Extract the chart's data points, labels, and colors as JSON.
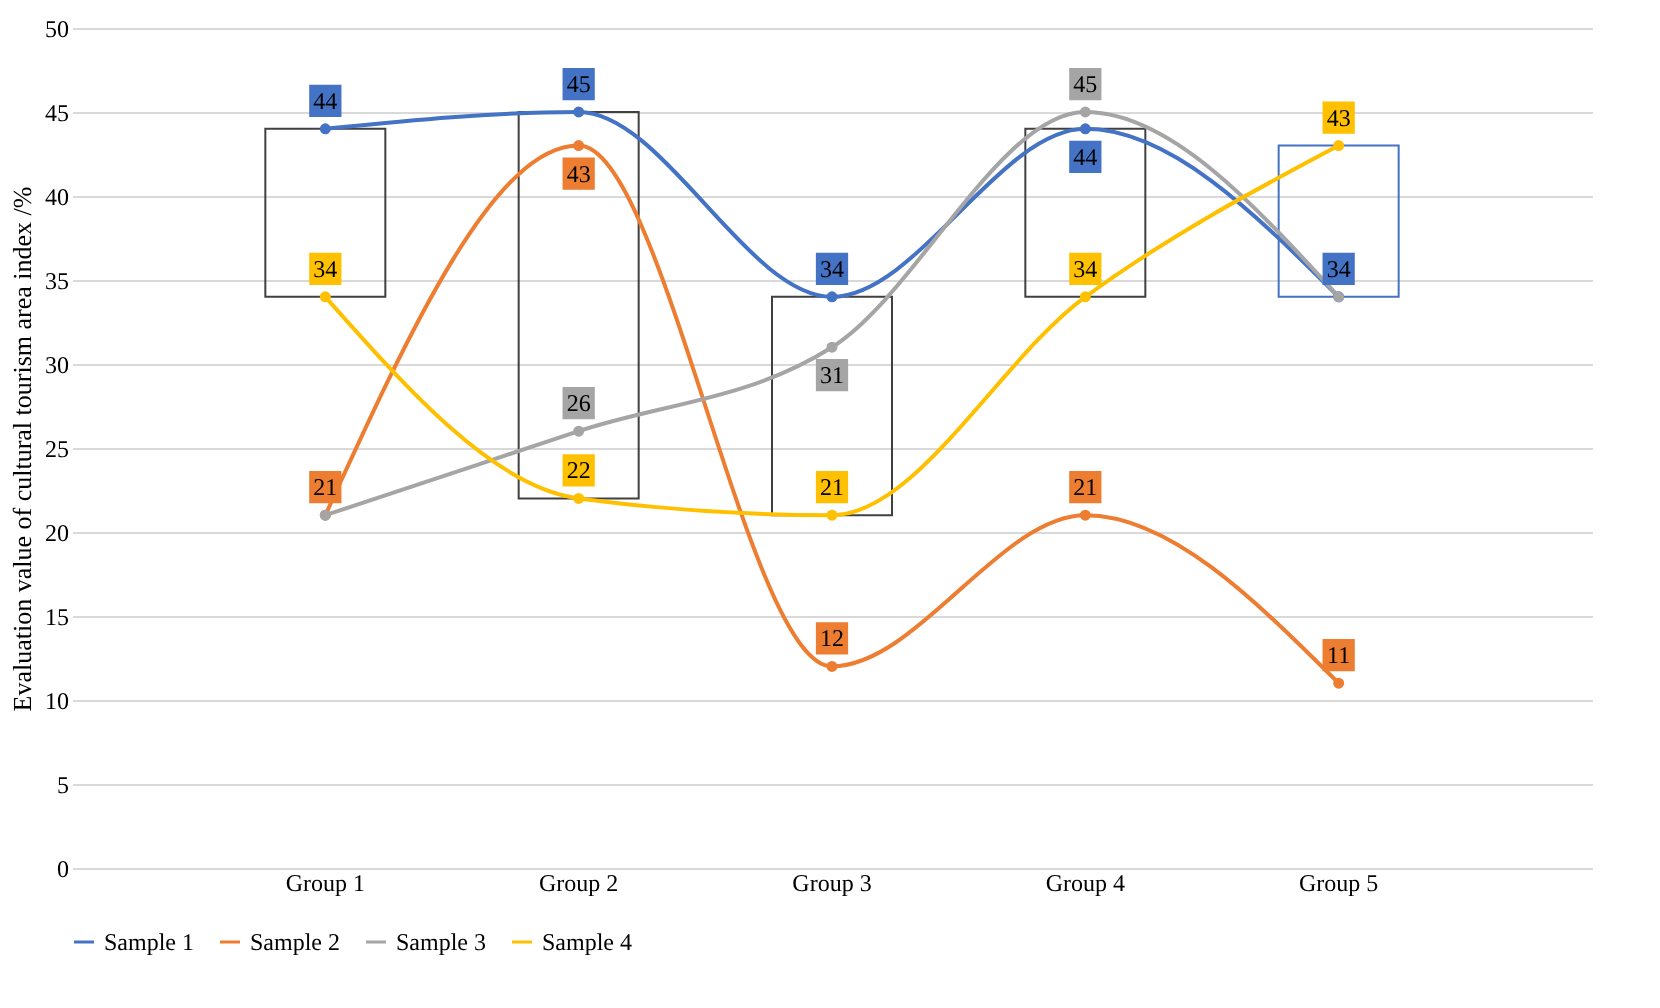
{
  "chart_data": {
    "type": "line",
    "ylabel": "Evaluation value of cultural tourism area index /%",
    "categories": [
      "Group 1",
      "Group 2",
      "Group 3",
      "Group 4",
      "Group 5"
    ],
    "series": [
      {
        "name": "Sample 1",
        "color": "#4472c4",
        "values": [
          44,
          45,
          34,
          44,
          34
        ],
        "value_labels": [
          "44",
          "45",
          "34",
          "44",
          "34"
        ]
      },
      {
        "name": "Sample 2",
        "color": "#ed7d31",
        "values": [
          21,
          43,
          12,
          21,
          11
        ],
        "value_labels": [
          "21",
          "43",
          "12",
          "21",
          "11"
        ]
      },
      {
        "name": "Sample 3",
        "color": "#a5a5a5",
        "values": [
          21,
          26,
          31,
          45,
          34
        ],
        "value_labels": [
          null,
          "26",
          "31",
          "45",
          null
        ]
      },
      {
        "name": "Sample 4",
        "color": "#ffc000",
        "values": [
          34,
          22,
          21,
          34,
          43
        ],
        "value_labels": [
          "34",
          "22",
          "21",
          "34",
          "43"
        ]
      },
      {
        "type": "bar",
        "base": [
          34,
          22,
          21,
          34,
          34
        ],
        "values": [
          10,
          23,
          13,
          10,
          9
        ],
        "colors": [
          "#404040",
          "#404040",
          "#404040",
          "#404040",
          "#4472c4"
        ]
      }
    ],
    "ylim": [
      0,
      50
    ],
    "yticks": [
      0,
      5,
      10,
      15,
      20,
      25,
      30,
      35,
      40,
      45,
      50
    ],
    "grid": "y",
    "legend": "bottom",
    "marker": "circle",
    "line_style": "solid"
  }
}
